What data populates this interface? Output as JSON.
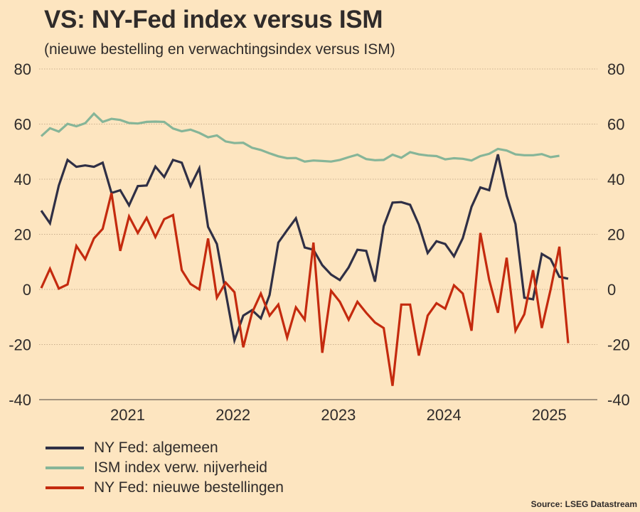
{
  "chart_data": {
    "type": "line",
    "title": "VS: NY-Fed index versus ISM",
    "subtitle": "(nieuwe bestelling en verwachtingsindex versus ISM)",
    "xlabel": "",
    "ylabel": "",
    "ylim": [
      -40,
      80
    ],
    "yticks": [
      "80",
      "60",
      "40",
      "20",
      "0",
      "-20",
      "-40"
    ],
    "ytick_values": [
      80,
      60,
      40,
      20,
      0,
      -20,
      -40
    ],
    "right_axis_mirrored": true,
    "grid": "horizontal dotted",
    "x_start": "2020-03",
    "x_frequency": "monthly",
    "xticks": [
      "2021",
      "2022",
      "2023",
      "2024",
      "2025"
    ],
    "xtick_month_index": [
      10,
      22,
      34,
      46,
      58
    ],
    "legend_position": "bottom-left",
    "series": [
      {
        "name": "NY Fed: algemeen",
        "color": "#2F2F45",
        "values": [
          28.6,
          24.0,
          37.7,
          47.0,
          44.5,
          45.0,
          44.5,
          46.0,
          35.0,
          36.0,
          30.5,
          37.5,
          37.7,
          44.6,
          40.8,
          47.0,
          46.0,
          37.5,
          44.0,
          22.7,
          16.5,
          -1.0,
          -18.5,
          -9.5,
          -7.5,
          -10.5,
          -2.0,
          17.0,
          21.5,
          25.8,
          15.2,
          14.4,
          8.8,
          5.4,
          3.4,
          8.0,
          14.4,
          14.0,
          2.8,
          23.0,
          31.5,
          31.7,
          30.7,
          23.5,
          13.2,
          17.5,
          16.5,
          12.0,
          18.6,
          30.0,
          37.0,
          36.0,
          49.0,
          34.0,
          23.7,
          -3.0,
          -3.6,
          12.9,
          11.0,
          4.6,
          3.9
        ]
      },
      {
        "name": "ISM index verw. nijverheid",
        "color": "#86B598",
        "values": [
          55.6,
          58.5,
          57.3,
          60.1,
          59.2,
          60.3,
          63.8,
          60.8,
          61.9,
          61.5,
          60.4,
          60.2,
          60.8,
          60.9,
          60.8,
          58.4,
          57.4,
          58.0,
          56.8,
          55.2,
          55.9,
          53.7,
          53.1,
          53.2,
          51.4,
          50.6,
          49.4,
          48.3,
          47.6,
          47.7,
          46.4,
          46.8,
          46.6,
          46.4,
          47.0,
          48.0,
          48.9,
          47.3,
          46.9,
          47.0,
          48.9,
          47.8,
          49.8,
          49.0,
          48.6,
          48.4,
          47.2,
          47.6,
          47.4,
          46.8,
          48.4,
          49.2,
          51.0,
          50.4,
          49.0,
          48.7,
          48.7,
          49.1,
          48.0,
          48.5
        ]
      },
      {
        "name": "NY Fed: nieuwe bestellingen",
        "color": "#C42A0E",
        "values": [
          0.5,
          7.5,
          0.3,
          1.8,
          15.8,
          11.0,
          18.5,
          22.0,
          35.0,
          14.0,
          26.5,
          20.5,
          26.0,
          19.0,
          25.5,
          27.0,
          7.0,
          2.0,
          0.0,
          18.5,
          -3.0,
          2.5,
          -1.0,
          -21.0,
          -8.5,
          -1.5,
          -9.5,
          -5.5,
          -17.5,
          -6.5,
          -11.0,
          17.0,
          -23.0,
          -0.5,
          -4.5,
          -11.0,
          -4.5,
          -8.5,
          -12.0,
          -14.0,
          -35.0,
          -5.5,
          -5.5,
          -24.0,
          -9.5,
          -5.0,
          -7.0,
          1.5,
          -1.5,
          -15.0,
          20.5,
          3.5,
          -8.5,
          11.5,
          -15.0,
          -9.0,
          7.0,
          -14.0,
          0.0,
          15.5,
          -19.5
        ]
      }
    ],
    "source": "Source: LSEG Datastream"
  }
}
